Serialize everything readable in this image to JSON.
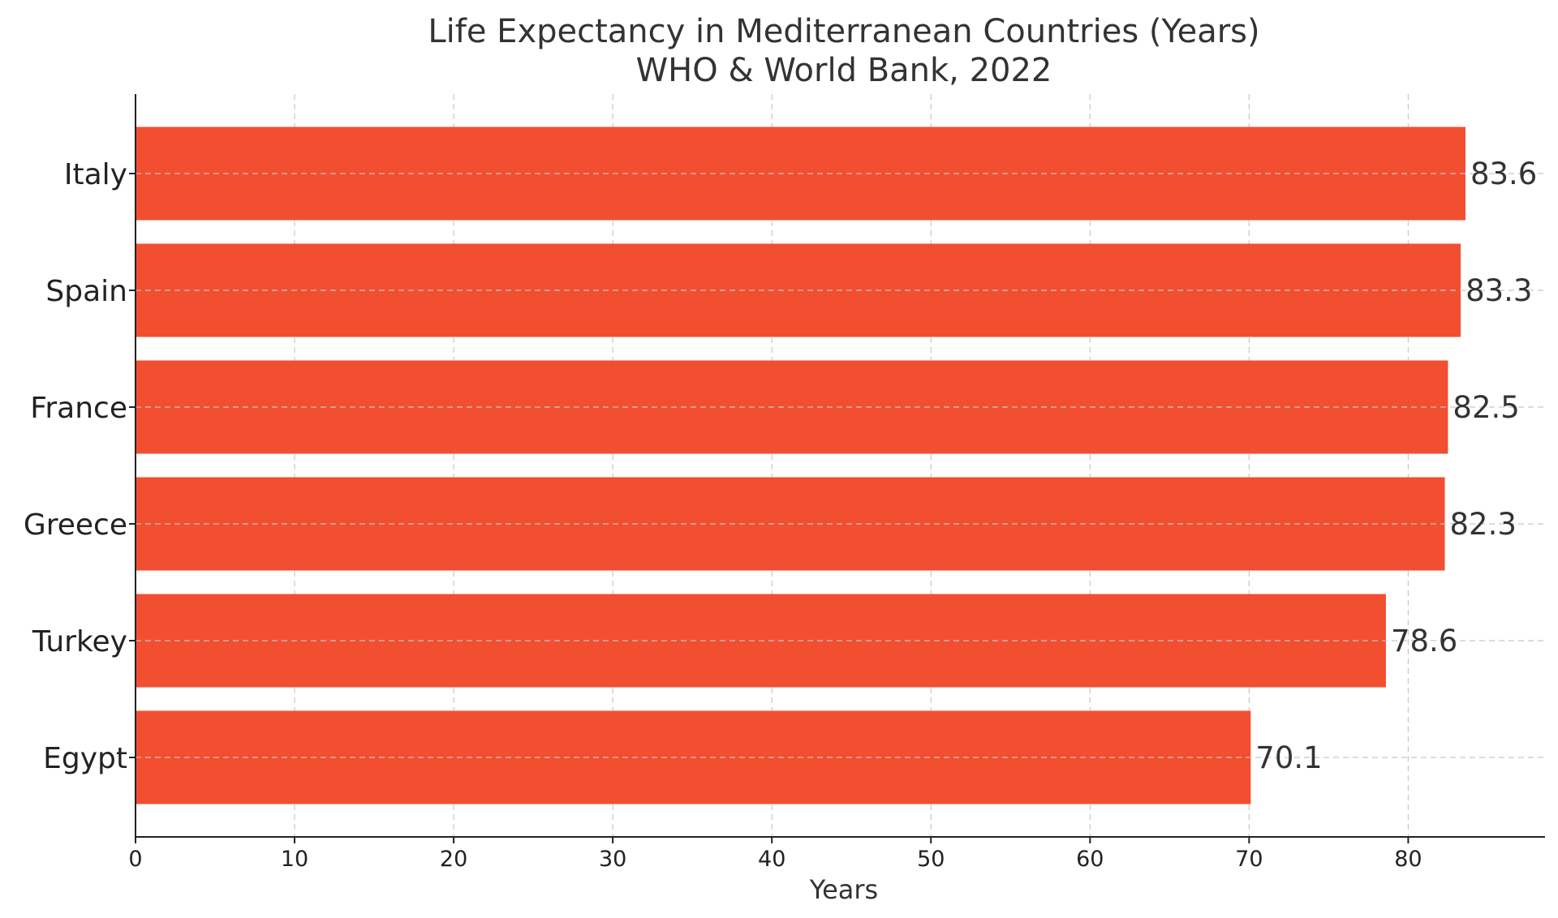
{
  "chart_data": {
    "type": "bar",
    "orientation": "horizontal",
    "title": "Life Expectancy in Mediterranean Countries (Years)",
    "subtitle": "WHO & World Bank, 2022",
    "xlabel": "Years",
    "ylabel": "",
    "categories": [
      "Italy",
      "Spain",
      "France",
      "Greece",
      "Turkey",
      "Egypt"
    ],
    "values": [
      83.6,
      83.3,
      82.5,
      82.3,
      78.6,
      70.1
    ],
    "value_labels": [
      "83.6",
      "83.3",
      "82.5",
      "82.3",
      "78.6",
      "70.1"
    ],
    "xlim": [
      0,
      88.6
    ],
    "xticks": [
      0,
      10,
      20,
      30,
      40,
      50,
      60,
      70,
      80
    ],
    "xtick_labels": [
      "0",
      "10",
      "20",
      "30",
      "40",
      "50",
      "60",
      "70",
      "80"
    ],
    "grid": true,
    "bar_color": "#f24e30",
    "text_color": "#333333"
  }
}
